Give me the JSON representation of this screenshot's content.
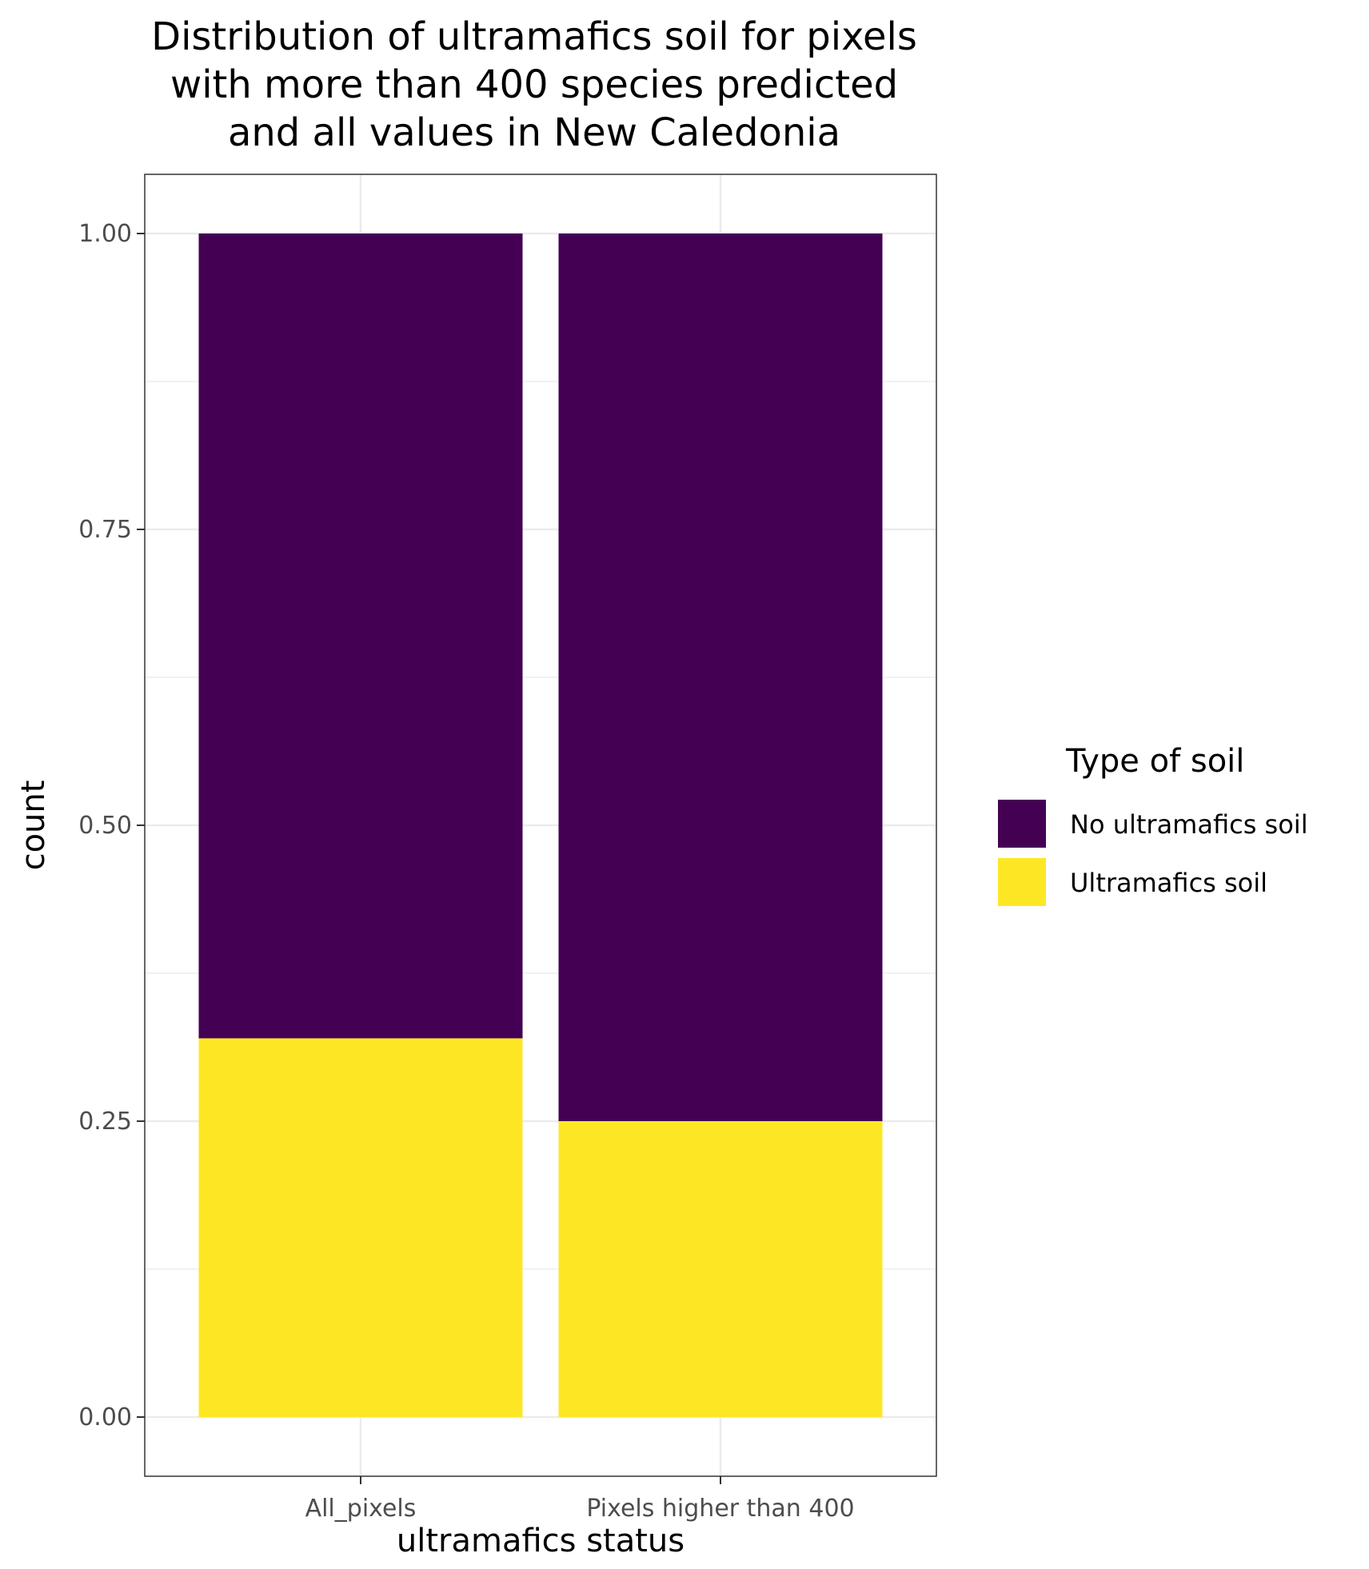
{
  "chart_data": {
    "type": "bar",
    "stacked": true,
    "title_lines": [
      "Distribution of ultramafics soil for pixels",
      "with more than 400 species predicted",
      "and all values in New Caledonia"
    ],
    "xlabel": "ultramafics status",
    "ylabel": "count",
    "categories": [
      "All_pixels",
      "Pixels higher than 400"
    ],
    "ylim": [
      -0.05,
      1.05
    ],
    "yticks": [
      0.0,
      0.25,
      0.5,
      0.75,
      1.0
    ],
    "ytick_labels": [
      "0.00",
      "0.25",
      "0.50",
      "0.75",
      "1.00"
    ],
    "series": [
      {
        "name": "Ultramafics soil",
        "color": "#FDE725",
        "values": [
          0.32,
          0.25
        ]
      },
      {
        "name": "No ultramafics soil",
        "color": "#440154",
        "values": [
          0.68,
          0.75
        ]
      }
    ],
    "legend": {
      "title": "Type of soil",
      "position": "right",
      "entries": [
        "No ultramafics soil",
        "Ultramafics soil"
      ],
      "colors": [
        "#440154",
        "#FDE725"
      ]
    },
    "grid": true
  }
}
